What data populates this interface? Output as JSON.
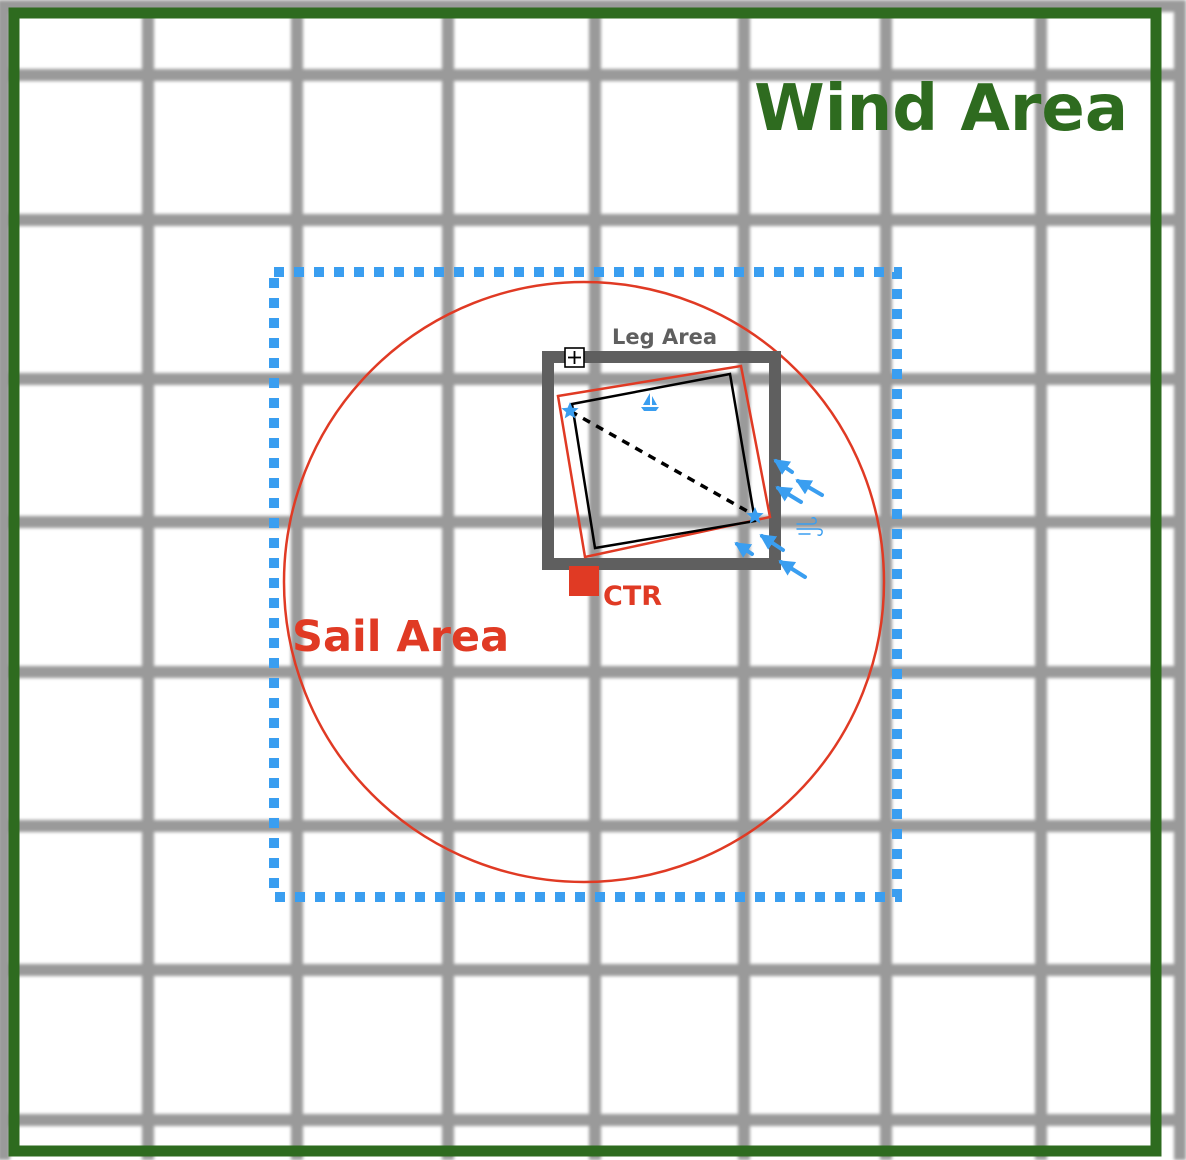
{
  "labels": {
    "wind_area": "Wind Area",
    "sail_area": "Sail Area",
    "leg_area": "Leg Area",
    "center": "CTR"
  },
  "colors": {
    "grid": "#9a9a9a",
    "wind_area": "#2e6b1f",
    "sail_area": "#e03a24",
    "leg_area": "#5f5f5f",
    "course": "#000000",
    "marks": "#3a9ef0",
    "dotted_bound": "#3a9ef0"
  },
  "icons": {
    "plus": "plus-box-icon",
    "sailboat": "sailboat-icon",
    "wind": "wind-icon",
    "marks": "star-icon",
    "wind_arrows": "arrow-icon"
  }
}
